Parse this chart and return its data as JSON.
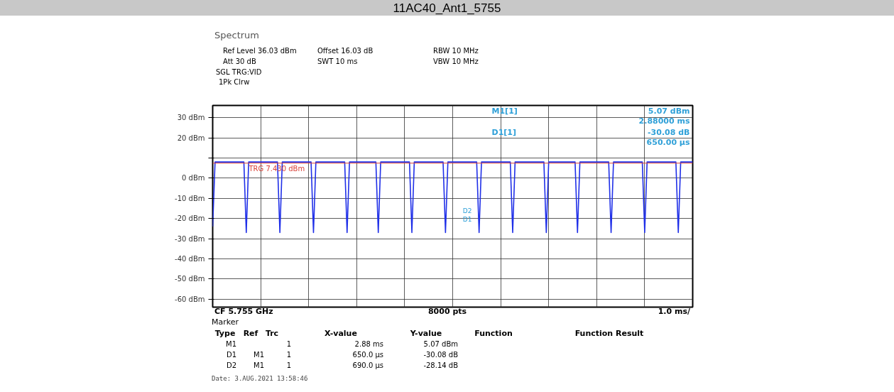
{
  "chart_data": {
    "type": "line",
    "title": "11AC40_Ant1_5755",
    "categories": [
      null,
      null,
      null,
      null,
      null,
      null,
      null,
      null,
      null,
      null,
      null,
      null,
      null,
      null,
      null,
      null,
      null,
      null,
      null,
      null,
      null,
      null,
      null,
      null,
      null,
      null,
      null,
      null,
      null,
      null,
      null,
      null,
      null,
      null,
      null,
      null,
      null,
      null,
      null,
      null,
      null,
      null,
      null,
      null,
      null,
      null,
      null,
      null,
      null,
      null,
      null,
      null,
      null,
      null,
      null,
      null,
      null,
      null,
      null,
      null,
      null,
      null,
      null,
      null,
      null,
      null,
      null,
      null,
      null,
      null,
      null,
      null,
      null,
      null,
      null,
      null,
      null,
      null,
      null,
      null,
      null,
      null,
      null,
      null,
      null,
      null,
      null,
      null,
      null,
      null,
      null,
      null,
      null,
      null,
      null,
      null,
      null,
      null,
      null,
      null,
      null,
      null,
      null,
      null,
      null,
      null,
      null,
      null,
      null,
      null,
      null,
      null,
      null,
      null,
      null,
      null,
      null,
      null,
      null,
      null,
      null,
      null,
      null,
      null,
      null,
      null,
      null,
      null,
      null,
      null,
      null,
      null,
      null,
      null,
      null,
      null,
      null,
      null,
      null,
      null,
      null,
      null,
      null,
      null,
      null,
      null,
      null,
      null,
      null,
      null,
      null,
      null,
      null,
      null,
      null,
      null,
      null,
      null,
      null,
      null,
      null,
      null,
      null,
      null,
      null,
      null,
      null,
      null,
      null,
      null,
      null,
      null,
      null,
      null,
      null,
      null,
      null,
      null,
      null,
      null,
      null,
      null,
      null,
      null,
      null,
      null,
      null,
      null,
      null,
      null,
      null,
      null,
      null,
      null,
      null,
      null,
      null,
      null,
      null,
      null,
      null
    ],
    "series": [
      {
        "color": "#1f2fe8",
        "values": [
          -24,
          8,
          8,
          8,
          8,
          8,
          8,
          8,
          8,
          8,
          8,
          8,
          8,
          8,
          -27,
          8,
          8,
          8,
          8,
          8,
          8,
          8,
          8,
          8,
          8,
          8,
          8,
          8,
          -27,
          8,
          8,
          8,
          8,
          8,
          8,
          8,
          8,
          8,
          8,
          8,
          8,
          8,
          -27,
          8,
          8,
          8,
          8,
          8,
          8,
          8,
          8,
          8,
          8,
          8,
          8,
          8,
          -27,
          8,
          8,
          8,
          8,
          8,
          8,
          8,
          8,
          8,
          8,
          8,
          8,
          -27,
          8,
          8,
          8,
          8,
          8,
          8,
          8,
          8,
          8,
          8,
          8,
          8,
          8,
          -27,
          8,
          8,
          8,
          8,
          8,
          8,
          8,
          8,
          8,
          8,
          8,
          8,
          8,
          -27,
          8,
          8,
          8,
          8,
          8,
          8,
          8,
          8,
          8,
          8,
          8,
          8,
          8,
          -27,
          8,
          8,
          8,
          8,
          8,
          8,
          8,
          8,
          8,
          8,
          8,
          8,
          8,
          -27,
          8,
          8,
          8,
          8,
          8,
          8,
          8,
          8,
          8,
          8,
          8,
          8,
          8,
          -27,
          8,
          8,
          8,
          8,
          8,
          8,
          8,
          8,
          8,
          8,
          8,
          8,
          -27,
          8,
          8,
          8,
          8,
          8,
          8,
          8,
          8,
          8,
          8,
          8,
          8,
          8,
          -27,
          8,
          8,
          8,
          8,
          8,
          8,
          8,
          8,
          8,
          8,
          8,
          8,
          8,
          -27,
          8,
          8,
          8,
          8,
          8,
          8,
          8,
          8,
          8,
          8,
          8,
          8,
          8,
          -27,
          8,
          8,
          8,
          8,
          8,
          8
        ]
      }
    ],
    "ylim": [
      -63.97,
      36.03
    ],
    "yticks": [
      {
        "value": 30,
        "label": "30 dBm"
      },
      {
        "value": 20,
        "label": "20 dBm"
      },
      {
        "value": 10,
        "label": null
      },
      {
        "value": 0,
        "label": "0 dBm"
      },
      {
        "value": -10,
        "label": "-10 dBm"
      },
      {
        "value": -20,
        "label": "-20 dBm"
      },
      {
        "value": -30,
        "label": "-30 dBm"
      },
      {
        "value": -40,
        "label": "-40 dBm"
      },
      {
        "value": -50,
        "label": "-50 dBm"
      },
      {
        "value": -60,
        "label": "-60 dBm"
      }
    ],
    "grid": true,
    "ref_lines": [
      {
        "axis": "y",
        "value": 7.43,
        "label": "TRG 7.430 dBm",
        "color": "#d9443a"
      }
    ],
    "annotations": [
      "Spectrum",
      "Ref Level 36.03 dBm",
      "Offset 16.03 dB",
      "RBW 10 MHz",
      "Att 30 dB",
      "SWT 10 ms",
      "VBW 10 MHz",
      "SGL TRG:VID",
      "1Pk Clrw",
      "M1[1]",
      "5.07 dBm",
      "2.88000 ms",
      "D1[1]",
      "-30.08 dB",
      "650.00 µs",
      "CF 5.755 GHz",
      "8000 pts",
      "1.0 ms/",
      "Marker",
      "Type",
      "Ref",
      "Trc",
      "X-value",
      "Y-value",
      "Function",
      "Function Result",
      "M1",
      "1",
      "2.88 ms",
      "5.07 dBm",
      "D1",
      "M1",
      "1",
      "650.0 µs",
      "-30.08 dB",
      "D2",
      "M1",
      "1",
      "690.0 µs",
      "-28.14 dB",
      "Date: 3.AUG.2021 13:58:46",
      "D2",
      "D1"
    ]
  }
}
